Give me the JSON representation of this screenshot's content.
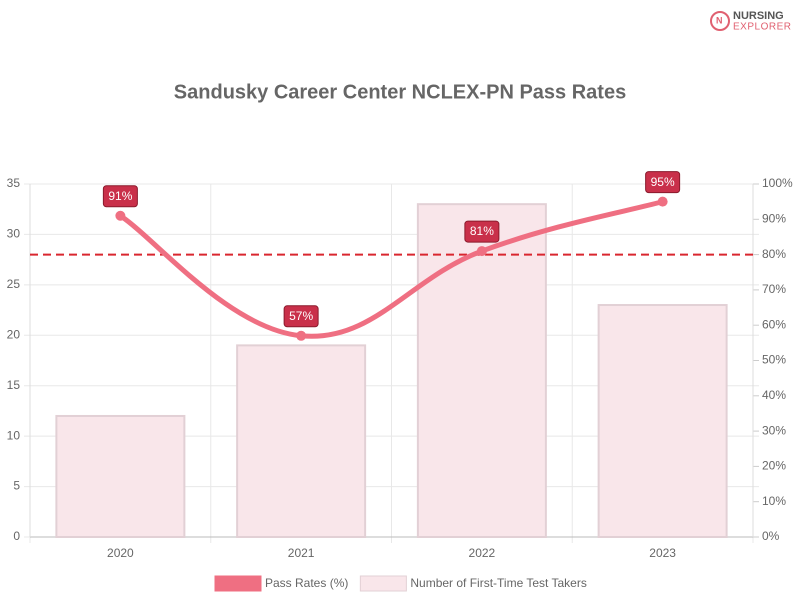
{
  "logo": {
    "line1": "NURSING",
    "line2": "EXPLORER"
  },
  "chart_data": {
    "type": "bar-line",
    "title": "Sandusky Career Center NCLEX-PN Pass Rates",
    "categories": [
      "2020",
      "2021",
      "2022",
      "2023"
    ],
    "series": [
      {
        "name": "Pass Rates (%)",
        "type": "line",
        "axis": "y2",
        "color": "#ef6f82",
        "values": [
          91,
          57,
          81,
          95
        ],
        "value_labels": [
          "91%",
          "57%",
          "81%",
          "95%"
        ]
      },
      {
        "name": "Number of First-Time Test Takers",
        "type": "bar",
        "axis": "y",
        "color": "#f9e6ea",
        "values": [
          12,
          19,
          33,
          23
        ]
      }
    ],
    "ylim": [
      0,
      35
    ],
    "yticks": [
      0,
      5,
      10,
      15,
      20,
      25,
      30,
      35
    ],
    "y2lim": [
      0,
      100
    ],
    "y2ticks": [
      {
        "value": 0,
        "label": "0%"
      },
      {
        "value": 10,
        "label": "10%"
      },
      {
        "value": 20,
        "label": "20%"
      },
      {
        "value": 30,
        "label": "30%"
      },
      {
        "value": 40,
        "label": "40%"
      },
      {
        "value": 50,
        "label": "50%"
      },
      {
        "value": 60,
        "label": "60%"
      },
      {
        "value": 70,
        "label": "70%"
      },
      {
        "value": 80,
        "label": "80%"
      },
      {
        "value": 90,
        "label": "90%"
      },
      {
        "value": 100,
        "label": "100%"
      }
    ],
    "reference_line": {
      "value": 80,
      "axis": "y2",
      "color": "#d9262f"
    },
    "grid": true,
    "legend": "bottom"
  }
}
